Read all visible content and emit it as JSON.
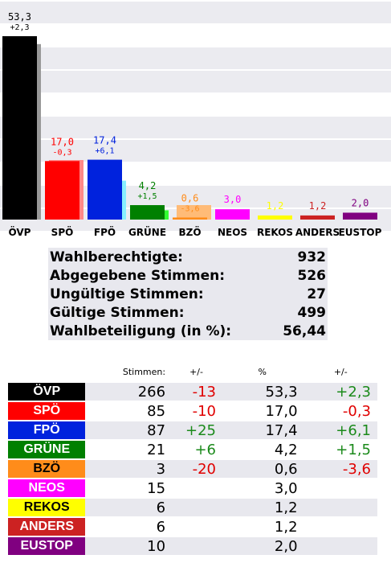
{
  "chart_data": {
    "type": "bar",
    "categories": [
      "ÖVP",
      "SPÖ",
      "FPÖ",
      "GRÜNE",
      "BZÖ",
      "NEOS",
      "REKOS",
      "ANDERS",
      "EUSTOP"
    ],
    "values": [
      53.3,
      17.0,
      17.4,
      4.2,
      0.6,
      3.0,
      1.2,
      1.2,
      2.0
    ],
    "value_labels": [
      "53,3",
      "17,0",
      "17,4",
      "4,2",
      "0,6",
      "3,0",
      "1,2",
      "1,2",
      "2,0"
    ],
    "previous_values": [
      51.0,
      17.3,
      11.3,
      2.7,
      4.2,
      null,
      null,
      null,
      null
    ],
    "change_labels": [
      "+2,3",
      "-0,3",
      "+6,1",
      "+1,5",
      "-3,6",
      "",
      "",
      "",
      ""
    ],
    "colors": [
      "#000000",
      "#ff0000",
      "#0022dd",
      "#008000",
      "#ff8c1a",
      "#ff00ff",
      "#ffff00",
      "#cc2222",
      "#800080"
    ],
    "previous_colors": [
      "#999999",
      "#ff8888",
      "#88eeff",
      "#33ff33",
      "#ffbb77",
      null,
      null,
      null,
      null
    ],
    "ylim": [
      0,
      60
    ],
    "grid": "horizontal bands"
  },
  "summary": [
    {
      "label": "Wahlberechtigte:",
      "value": "932"
    },
    {
      "label": "Abgegebene Stimmen:",
      "value": "526"
    },
    {
      "label": "Ungültige Stimmen:",
      "value": "27"
    },
    {
      "label": "Gültige Stimmen:",
      "value": "499"
    },
    {
      "label": "Wahlbeteiligung (in %):",
      "value": "56,44"
    }
  ],
  "results": {
    "headers": {
      "votes": "Stimmen:",
      "votes_change": "+/-",
      "percent": "%",
      "percent_change": "+/-"
    },
    "rows": [
      {
        "party": "ÖVP",
        "votes": "266",
        "votes_change": "-13",
        "percent": "53,3",
        "percent_change": "+2,3",
        "bg": "#000000",
        "fg": "#ffffff"
      },
      {
        "party": "SPÖ",
        "votes": "85",
        "votes_change": "-10",
        "percent": "17,0",
        "percent_change": "-0,3",
        "bg": "#ff0000",
        "fg": "#ffffff"
      },
      {
        "party": "FPÖ",
        "votes": "87",
        "votes_change": "+25",
        "percent": "17,4",
        "percent_change": "+6,1",
        "bg": "#0022dd",
        "fg": "#ffffff"
      },
      {
        "party": "GRÜNE",
        "votes": "21",
        "votes_change": "+6",
        "percent": "4,2",
        "percent_change": "+1,5",
        "bg": "#008000",
        "fg": "#ffffff"
      },
      {
        "party": "BZÖ",
        "votes": "3",
        "votes_change": "-20",
        "percent": "0,6",
        "percent_change": "-3,6",
        "bg": "#ff8c1a",
        "fg": "#000000"
      },
      {
        "party": "NEOS",
        "votes": "15",
        "votes_change": "",
        "percent": "3,0",
        "percent_change": "",
        "bg": "#ff00ff",
        "fg": "#ffffff"
      },
      {
        "party": "REKOS",
        "votes": "6",
        "votes_change": "",
        "percent": "1,2",
        "percent_change": "",
        "bg": "#ffff00",
        "fg": "#000000"
      },
      {
        "party": "ANDERS",
        "votes": "6",
        "votes_change": "",
        "percent": "1,2",
        "percent_change": "",
        "bg": "#cc2222",
        "fg": "#ffffff"
      },
      {
        "party": "EUSTOP",
        "votes": "10",
        "votes_change": "",
        "percent": "2,0",
        "percent_change": "",
        "bg": "#800080",
        "fg": "#ffffff"
      }
    ]
  }
}
